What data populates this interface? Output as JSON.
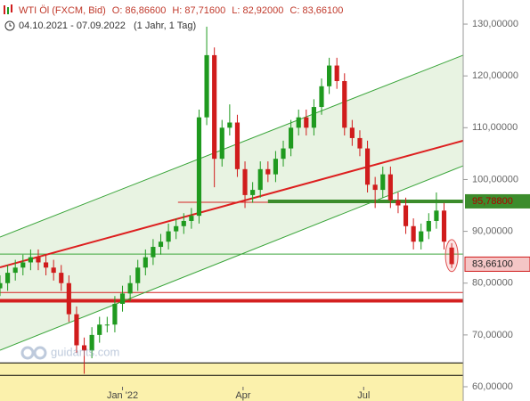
{
  "chart_data": {
    "type": "candlestick",
    "title": "WTI Öl (FXCM, Bid)",
    "ohlc_labels": [
      "O: 86,86600",
      "H: 87,71600",
      "L: 82,92000",
      "C: 83,66100"
    ],
    "subtitle": "04.10.2021 - 07.09.2022",
    "period": "(1 Jahr, 1 Tag)",
    "watermark": "guidants.com",
    "x": [
      0,
      4,
      8,
      12,
      16,
      20,
      24,
      28,
      32,
      36,
      40,
      44,
      48,
      52,
      56,
      60,
      64,
      68,
      72,
      76,
      80,
      84,
      88,
      92,
      96,
      100,
      104,
      108,
      112,
      116,
      120,
      124,
      128,
      132,
      136,
      140,
      144,
      148,
      152,
      156,
      160,
      164,
      168,
      172,
      176,
      180,
      184,
      188,
      192,
      196,
      200,
      204,
      208,
      212,
      216,
      220,
      224,
      228,
      232,
      236
    ],
    "open": [
      79,
      80,
      82,
      83,
      84,
      85,
      84,
      83,
      82,
      80,
      74,
      68,
      67,
      70,
      72,
      72,
      76,
      78,
      80,
      83,
      85,
      87,
      88,
      90,
      91,
      92,
      93,
      112,
      124,
      104,
      110,
      111,
      102,
      97,
      98,
      102,
      101,
      104,
      106,
      110,
      112,
      110,
      114,
      118,
      122,
      119,
      110,
      108,
      106,
      99,
      98,
      101,
      96,
      95,
      91,
      88,
      90,
      92,
      94,
      86.866
    ],
    "high": [
      81.5,
      83.5,
      84.5,
      85.5,
      86.5,
      86.5,
      85.5,
      84.5,
      83.5,
      81.5,
      75.5,
      69.5,
      71.5,
      73.5,
      73.5,
      77.5,
      79.5,
      81.5,
      84.5,
      86.5,
      88.5,
      89.5,
      91.5,
      92.5,
      93.5,
      94.5,
      113.5,
      129.5,
      125.5,
      111.5,
      114.5,
      112.5,
      103.5,
      99.5,
      103.5,
      103.5,
      105.5,
      107.5,
      111.5,
      113.5,
      113.5,
      115.5,
      119.5,
      123.5,
      123.5,
      120.5,
      111.5,
      109.5,
      107.5,
      100.5,
      102.5,
      102.5,
      97.5,
      96.5,
      92.5,
      91.5,
      93.5,
      97.5,
      95.5,
      87.716
    ],
    "low": [
      77.5,
      78.5,
      80.5,
      81.5,
      82.5,
      82.5,
      81.5,
      80.5,
      78.5,
      72.5,
      66.5,
      62.5,
      65.5,
      68.5,
      70.5,
      70.5,
      74.5,
      76.5,
      78.5,
      81.5,
      83.5,
      85.5,
      86.5,
      88.5,
      89.5,
      90.5,
      91.5,
      110.5,
      98.5,
      102.5,
      108.5,
      100.5,
      94.5,
      95.5,
      96.5,
      99.5,
      99.5,
      102.5,
      104.5,
      108.5,
      108.5,
      108.5,
      112.5,
      116.5,
      117.5,
      108.5,
      106.5,
      104.5,
      97.5,
      94.5,
      96.5,
      94.5,
      93.5,
      89.5,
      86.5,
      86.5,
      88.5,
      90.5,
      86.5,
      82.92
    ],
    "close": [
      80,
      82,
      83,
      84,
      85,
      84,
      83,
      82,
      80,
      74,
      68,
      67,
      70,
      72,
      72,
      76,
      78,
      80,
      83,
      85,
      87,
      88,
      90,
      91,
      92,
      93,
      112,
      124,
      104,
      110,
      111,
      102,
      97,
      98,
      102,
      101,
      104,
      106,
      110,
      112,
      110,
      114,
      118,
      122,
      119,
      110,
      108,
      106,
      99,
      98,
      101,
      96,
      95,
      91,
      88,
      90,
      92,
      94,
      88,
      83.661
    ],
    "close_label": "83,66100",
    "up_color": "#1f9a1f",
    "down_color": "#d01c1c",
    "xlim": [
      0,
      242
    ],
    "ylim": [
      57.25,
      134.65
    ],
    "xticks": [
      {
        "value": 64,
        "label": "Jan '22"
      },
      {
        "value": 127,
        "label": "Apr"
      },
      {
        "value": 190,
        "label": "Jul"
      }
    ],
    "yticks": [
      {
        "value": 60,
        "label": "60,00000"
      },
      {
        "value": 70,
        "label": "70,00000"
      },
      {
        "value": 80,
        "label": "80,00000"
      },
      {
        "value": 90,
        "label": "90,00000"
      },
      {
        "value": 100,
        "label": "100,00000"
      },
      {
        "value": 110,
        "label": "110,00000"
      },
      {
        "value": 120,
        "label": "120,00000"
      },
      {
        "value": 130,
        "label": "130,00000"
      }
    ],
    "channel_color": "#e8f3e2",
    "trendlines": [
      {
        "x": [
          0,
          242
        ],
        "y": [
          88.9,
          124.0
        ],
        "color": "#3aa53a"
      },
      {
        "x": [
          0,
          242
        ],
        "y": [
          67.05,
          102.65
        ],
        "color": "#3aa53a"
      },
      {
        "x": [
          0,
          242
        ],
        "y": [
          83.05,
          107.5
        ],
        "color": "#dd1f1f",
        "thick": true
      }
    ],
    "zones": [
      {
        "from": 57.25,
        "to": 64.6,
        "color": "#fbf1ac"
      }
    ],
    "levels": [
      {
        "y": 95.6,
        "x": [
          93,
          242
        ],
        "color": "#d42020"
      },
      {
        "y": 95.788,
        "x": [
          140,
          242
        ],
        "color": "#3c8c2c",
        "thick": true,
        "label": "95,78800"
      },
      {
        "y": 85.6,
        "x": [
          0,
          242
        ],
        "color": "#3aa53a"
      },
      {
        "y": 78.2,
        "x": [
          0,
          242
        ],
        "color": "#d42020"
      },
      {
        "y": 76.6,
        "x": [
          0,
          242
        ],
        "color": "#d42020",
        "thick": true
      },
      {
        "y": 64.6,
        "x": [
          0,
          242
        ],
        "color": "#000000"
      },
      {
        "y": 62.2,
        "x": [
          0,
          242
        ],
        "color": "#000000"
      }
    ]
  }
}
